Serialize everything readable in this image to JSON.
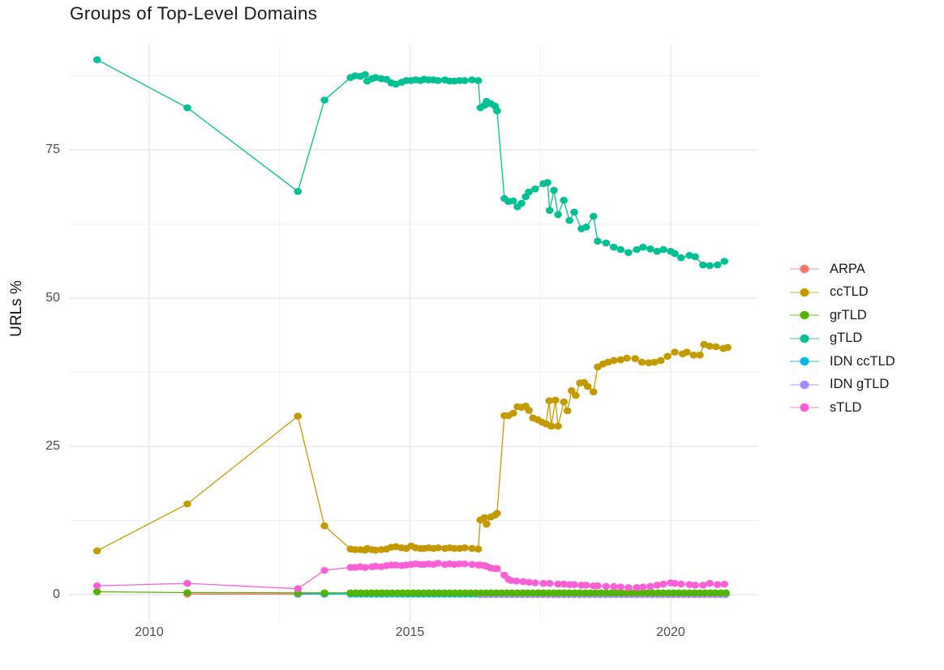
{
  "chart_data": {
    "type": "line",
    "title": "Groups of Top-Level Domains",
    "xlabel": "",
    "ylabel": "URLs %",
    "x_ticks": [
      2010,
      2015,
      2020
    ],
    "x_minor_gridlines": [
      2012.5,
      2017.5
    ],
    "y_ticks": [
      0,
      25,
      50,
      75
    ],
    "y_minor_gridlines": [
      12.5,
      37.5,
      62.5,
      87.5
    ],
    "xlim": [
      2008.46,
      2021.68
    ],
    "ylim": [
      -4.64,
      92.76
    ],
    "grid": true,
    "legend_position": "right",
    "draw_order": [
      "ARPA",
      "IDN ccTLD",
      "IDN gTLD",
      "grTLD",
      "ccTLD",
      "gTLD",
      "sTLD"
    ],
    "series": [
      {
        "name": "ARPA",
        "color": "#F8766D",
        "points": [
          [
            2010.73,
            0.1
          ],
          [
            2012.85,
            0.08
          ],
          [
            2013.36,
            0.08
          ]
        ]
      },
      {
        "name": "ccTLD",
        "color": "#C49A00",
        "points": [
          [
            2009.0,
            7.4
          ],
          [
            2010.73,
            15.3
          ],
          [
            2012.85,
            30.1
          ],
          [
            2013.36,
            11.6
          ],
          [
            2013.86,
            7.7
          ],
          [
            2013.95,
            7.6
          ],
          [
            2014.05,
            7.6
          ],
          [
            2014.14,
            7.5
          ],
          [
            2014.18,
            7.8
          ],
          [
            2014.27,
            7.6
          ],
          [
            2014.34,
            7.5
          ],
          [
            2014.45,
            7.6
          ],
          [
            2014.55,
            7.7
          ],
          [
            2014.64,
            8.0
          ],
          [
            2014.73,
            8.1
          ],
          [
            2014.84,
            7.9
          ],
          [
            2014.93,
            7.8
          ],
          [
            2015.02,
            8.2
          ],
          [
            2015.11,
            7.9
          ],
          [
            2015.2,
            7.8
          ],
          [
            2015.27,
            7.8
          ],
          [
            2015.36,
            7.9
          ],
          [
            2015.45,
            7.8
          ],
          [
            2015.54,
            7.9
          ],
          [
            2015.67,
            7.8
          ],
          [
            2015.76,
            7.9
          ],
          [
            2015.85,
            7.8
          ],
          [
            2015.95,
            7.8
          ],
          [
            2016.05,
            7.9
          ],
          [
            2016.19,
            7.8
          ],
          [
            2016.31,
            7.7
          ],
          [
            2016.35,
            12.6
          ],
          [
            2016.43,
            13.0
          ],
          [
            2016.47,
            11.9
          ],
          [
            2016.55,
            13.1
          ],
          [
            2016.63,
            13.4
          ],
          [
            2016.67,
            13.7
          ],
          [
            2016.81,
            30.2
          ],
          [
            2016.89,
            30.2
          ],
          [
            2016.98,
            30.6
          ],
          [
            2017.06,
            31.7
          ],
          [
            2017.14,
            31.6
          ],
          [
            2017.22,
            31.8
          ],
          [
            2017.28,
            31.1
          ],
          [
            2017.36,
            29.8
          ],
          [
            2017.45,
            29.5
          ],
          [
            2017.53,
            29.1
          ],
          [
            2017.61,
            28.8
          ],
          [
            2017.67,
            32.7
          ],
          [
            2017.71,
            28.4
          ],
          [
            2017.79,
            32.8
          ],
          [
            2017.84,
            28.4
          ],
          [
            2017.95,
            32.5
          ],
          [
            2018.02,
            31.0
          ],
          [
            2018.1,
            34.4
          ],
          [
            2018.18,
            33.6
          ],
          [
            2018.26,
            35.7
          ],
          [
            2018.34,
            35.8
          ],
          [
            2018.41,
            35.1
          ],
          [
            2018.52,
            34.2
          ],
          [
            2018.6,
            38.4
          ],
          [
            2018.7,
            38.9
          ],
          [
            2018.8,
            39.2
          ],
          [
            2018.91,
            39.5
          ],
          [
            2019.04,
            39.6
          ],
          [
            2019.16,
            39.9
          ],
          [
            2019.32,
            39.8
          ],
          [
            2019.45,
            39.2
          ],
          [
            2019.58,
            39.1
          ],
          [
            2019.69,
            39.2
          ],
          [
            2019.81,
            39.5
          ],
          [
            2019.94,
            40.2
          ],
          [
            2020.08,
            40.9
          ],
          [
            2020.23,
            40.6
          ],
          [
            2020.31,
            40.9
          ],
          [
            2020.44,
            40.4
          ],
          [
            2020.56,
            40.4
          ],
          [
            2020.64,
            42.2
          ],
          [
            2020.75,
            41.9
          ],
          [
            2020.87,
            41.8
          ],
          [
            2021.01,
            41.5
          ],
          [
            2021.09,
            41.7
          ]
        ]
      },
      {
        "name": "grTLD",
        "color": "#53B400",
        "points": [
          [
            2009.0,
            0.5
          ],
          [
            2010.73,
            0.35
          ],
          [
            2012.85,
            0.3
          ],
          [
            2013.36,
            0.3
          ]
        ],
        "flat": {
          "from": 2013.86,
          "to": 2021.09,
          "step": 0.1,
          "value": 0.3
        }
      },
      {
        "name": "gTLD",
        "color": "#00C094",
        "points": [
          [
            2009.0,
            90.2
          ],
          [
            2010.73,
            82.1
          ],
          [
            2012.85,
            68.0
          ],
          [
            2013.36,
            83.4
          ],
          [
            2013.86,
            87.2
          ],
          [
            2013.95,
            87.5
          ],
          [
            2014.05,
            87.4
          ],
          [
            2014.14,
            87.7
          ],
          [
            2014.18,
            86.6
          ],
          [
            2014.27,
            87.0
          ],
          [
            2014.34,
            87.2
          ],
          [
            2014.45,
            87.0
          ],
          [
            2014.55,
            86.9
          ],
          [
            2014.64,
            86.3
          ],
          [
            2014.73,
            86.1
          ],
          [
            2014.84,
            86.4
          ],
          [
            2014.93,
            86.7
          ],
          [
            2015.02,
            86.7
          ],
          [
            2015.11,
            86.8
          ],
          [
            2015.2,
            86.7
          ],
          [
            2015.27,
            86.9
          ],
          [
            2015.36,
            86.8
          ],
          [
            2015.45,
            86.8
          ],
          [
            2015.54,
            86.7
          ],
          [
            2015.67,
            86.8
          ],
          [
            2015.76,
            86.6
          ],
          [
            2015.85,
            86.6
          ],
          [
            2015.95,
            86.7
          ],
          [
            2016.05,
            86.7
          ],
          [
            2016.19,
            86.8
          ],
          [
            2016.31,
            86.7
          ],
          [
            2016.35,
            82.1
          ],
          [
            2016.43,
            82.5
          ],
          [
            2016.47,
            83.2
          ],
          [
            2016.55,
            82.8
          ],
          [
            2016.63,
            82.4
          ],
          [
            2016.67,
            81.6
          ],
          [
            2016.81,
            66.8
          ],
          [
            2016.89,
            66.3
          ],
          [
            2016.98,
            66.4
          ],
          [
            2017.06,
            65.4
          ],
          [
            2017.14,
            66.0
          ],
          [
            2017.22,
            67.1
          ],
          [
            2017.28,
            67.9
          ],
          [
            2017.4,
            68.4
          ],
          [
            2017.56,
            69.3
          ],
          [
            2017.64,
            69.5
          ],
          [
            2017.68,
            64.8
          ],
          [
            2017.76,
            68.2
          ],
          [
            2017.84,
            64.1
          ],
          [
            2017.95,
            66.5
          ],
          [
            2018.06,
            63.1
          ],
          [
            2018.15,
            64.5
          ],
          [
            2018.29,
            61.7
          ],
          [
            2018.38,
            62.0
          ],
          [
            2018.52,
            63.8
          ],
          [
            2018.6,
            59.6
          ],
          [
            2018.76,
            59.3
          ],
          [
            2018.91,
            58.6
          ],
          [
            2019.04,
            58.2
          ],
          [
            2019.19,
            57.7
          ],
          [
            2019.35,
            58.2
          ],
          [
            2019.47,
            58.6
          ],
          [
            2019.61,
            58.3
          ],
          [
            2019.74,
            57.9
          ],
          [
            2019.86,
            58.2
          ],
          [
            2020.0,
            57.9
          ],
          [
            2020.08,
            57.5
          ],
          [
            2020.2,
            56.8
          ],
          [
            2020.36,
            57.2
          ],
          [
            2020.47,
            57.0
          ],
          [
            2020.62,
            55.6
          ],
          [
            2020.75,
            55.5
          ],
          [
            2020.9,
            55.6
          ],
          [
            2021.03,
            56.2
          ]
        ]
      },
      {
        "name": "IDN ccTLD",
        "color": "#00B6EB",
        "points": [
          [
            2012.85,
            0.15
          ],
          [
            2013.36,
            0.12
          ]
        ],
        "flat": {
          "from": 2013.86,
          "to": 2021.09,
          "step": 0.1,
          "value": 0.1
        }
      },
      {
        "name": "IDN gTLD",
        "color": "#A58AFF",
        "points": [],
        "flat": {
          "from": 2016.35,
          "to": 2021.09,
          "step": 0.1,
          "value": 0.0
        }
      },
      {
        "name": "sTLD",
        "color": "#FB61D7",
        "points": [
          [
            2009.0,
            1.5
          ],
          [
            2010.73,
            1.9
          ],
          [
            2012.85,
            1.0
          ],
          [
            2013.36,
            4.1
          ],
          [
            2013.86,
            4.6
          ],
          [
            2013.95,
            4.6
          ],
          [
            2014.05,
            4.7
          ],
          [
            2014.14,
            4.6
          ],
          [
            2014.27,
            4.7
          ],
          [
            2014.34,
            4.8
          ],
          [
            2014.45,
            4.7
          ],
          [
            2014.55,
            4.9
          ],
          [
            2014.64,
            5.0
          ],
          [
            2014.73,
            5.0
          ],
          [
            2014.84,
            4.9
          ],
          [
            2014.93,
            5.0
          ],
          [
            2015.02,
            5.1
          ],
          [
            2015.11,
            5.2
          ],
          [
            2015.2,
            5.1
          ],
          [
            2015.27,
            5.1
          ],
          [
            2015.36,
            5.2
          ],
          [
            2015.45,
            5.1
          ],
          [
            2015.54,
            5.3
          ],
          [
            2015.67,
            5.1
          ],
          [
            2015.76,
            5.2
          ],
          [
            2015.85,
            5.1
          ],
          [
            2015.95,
            5.2
          ],
          [
            2016.05,
            5.2
          ],
          [
            2016.19,
            5.1
          ],
          [
            2016.31,
            5.0
          ],
          [
            2016.35,
            5.0
          ],
          [
            2016.43,
            4.9
          ],
          [
            2016.47,
            4.8
          ],
          [
            2016.55,
            4.5
          ],
          [
            2016.63,
            4.4
          ],
          [
            2016.67,
            4.4
          ],
          [
            2016.81,
            3.3
          ],
          [
            2016.89,
            2.6
          ],
          [
            2016.94,
            2.4
          ],
          [
            2017.04,
            2.3
          ],
          [
            2017.17,
            2.2
          ],
          [
            2017.28,
            2.1
          ],
          [
            2017.4,
            2.0
          ],
          [
            2017.56,
            1.9
          ],
          [
            2017.68,
            1.9
          ],
          [
            2017.84,
            1.8
          ],
          [
            2017.95,
            1.8
          ],
          [
            2018.06,
            1.7
          ],
          [
            2018.15,
            1.7
          ],
          [
            2018.29,
            1.6
          ],
          [
            2018.38,
            1.6
          ],
          [
            2018.52,
            1.5
          ],
          [
            2018.6,
            1.5
          ],
          [
            2018.76,
            1.4
          ],
          [
            2018.91,
            1.4
          ],
          [
            2019.04,
            1.3
          ],
          [
            2019.19,
            1.2
          ],
          [
            2019.35,
            1.2
          ],
          [
            2019.47,
            1.3
          ],
          [
            2019.61,
            1.4
          ],
          [
            2019.74,
            1.6
          ],
          [
            2019.86,
            1.8
          ],
          [
            2020.0,
            2.0
          ],
          [
            2020.08,
            1.9
          ],
          [
            2020.2,
            1.8
          ],
          [
            2020.36,
            1.7
          ],
          [
            2020.47,
            1.6
          ],
          [
            2020.62,
            1.6
          ],
          [
            2020.75,
            1.9
          ],
          [
            2020.9,
            1.7
          ],
          [
            2021.03,
            1.8
          ]
        ]
      }
    ]
  },
  "style": {
    "grid_major_color": "#e4e4e4",
    "grid_minor_color": "#f1f1f1",
    "tick_label_color": "#4d4d4d",
    "title_color": "#1a1a1a"
  }
}
